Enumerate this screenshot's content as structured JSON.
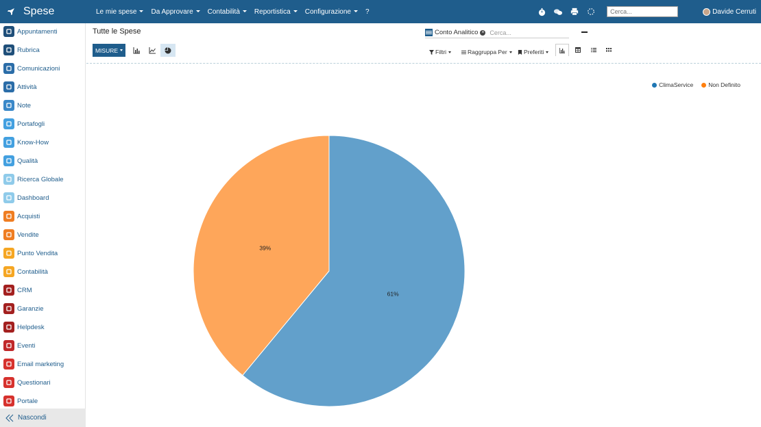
{
  "app": {
    "title": "Spese"
  },
  "topmenu": {
    "items": [
      {
        "label": "Le mie spese",
        "dropdown": true
      },
      {
        "label": "Da Approvare",
        "dropdown": true
      },
      {
        "label": "Contabilità",
        "dropdown": true
      },
      {
        "label": "Reportistica",
        "dropdown": true
      },
      {
        "label": "Configurazione",
        "dropdown": true
      },
      {
        "label": "?",
        "dropdown": false
      }
    ],
    "search_placeholder": "Cerca...",
    "user_name": "Davide Cerruti"
  },
  "sidebar": {
    "items": [
      {
        "label": "Appuntamenti",
        "icon": "calendar-icon",
        "color": "#1f4f7a"
      },
      {
        "label": "Rubrica",
        "icon": "contacts-icon",
        "color": "#1f4f7a"
      },
      {
        "label": "Comunicazioni",
        "icon": "chat-icon",
        "color": "#2b6da8"
      },
      {
        "label": "Attività",
        "icon": "check-icon",
        "color": "#2b6da8"
      },
      {
        "label": "Note",
        "icon": "note-icon",
        "color": "#3a88c8"
      },
      {
        "label": "Portafogli",
        "icon": "lock-icon",
        "color": "#43a0e0"
      },
      {
        "label": "Know-How",
        "icon": "head-icon",
        "color": "#43a0e0"
      },
      {
        "label": "Qualità",
        "icon": "quality-icon",
        "color": "#43a0e0"
      },
      {
        "label": "Ricerca Globale",
        "icon": "search-icon",
        "color": "#8fcbea"
      },
      {
        "label": "Dashboard",
        "icon": "dashboard-icon",
        "color": "#8fcbea"
      },
      {
        "label": "Acquisti",
        "icon": "purchase-icon",
        "color": "#ef7d22"
      },
      {
        "label": "Vendite",
        "icon": "sales-icon",
        "color": "#ef7d22"
      },
      {
        "label": "Punto Vendita",
        "icon": "pos-icon",
        "color": "#f5a623"
      },
      {
        "label": "Contabilità",
        "icon": "accounting-icon",
        "color": "#f5a623"
      },
      {
        "label": "CRM",
        "icon": "crm-icon",
        "color": "#a3201f"
      },
      {
        "label": "Garanzie",
        "icon": "shield-icon",
        "color": "#a3201f"
      },
      {
        "label": "Helpdesk",
        "icon": "headset-icon",
        "color": "#a3201f"
      },
      {
        "label": "Eventi",
        "icon": "ticket-icon",
        "color": "#c0282a"
      },
      {
        "label": "Email marketing",
        "icon": "send-icon",
        "color": "#d6312d"
      },
      {
        "label": "Questionari",
        "icon": "survey-icon",
        "color": "#d6312d"
      },
      {
        "label": "Portale",
        "icon": "portal-icon",
        "color": "#d6312d"
      }
    ],
    "hide_label": "Nascondi"
  },
  "control_panel": {
    "title": "Tutte le Spese",
    "measures_label": "MISURE",
    "facet_label": "Conto Analitico",
    "search_placeholder": "Cerca...",
    "filters_label": "Filtri",
    "groupby_label": "Raggruppa Per",
    "favorites_label": "Preferiti"
  },
  "colors": {
    "navbar": "#1f5d8c",
    "series_1": "#62a0cb",
    "series_2": "#fea65a",
    "legend_1": "#1f77b4",
    "legend_2": "#ff7f0e"
  },
  "chart_data": {
    "type": "pie",
    "legend_position": "top-right",
    "series": [
      {
        "name": "ClimaService",
        "value": 61,
        "label": "61%"
      },
      {
        "name": "Non Definito",
        "value": 39,
        "label": "39%"
      }
    ]
  }
}
